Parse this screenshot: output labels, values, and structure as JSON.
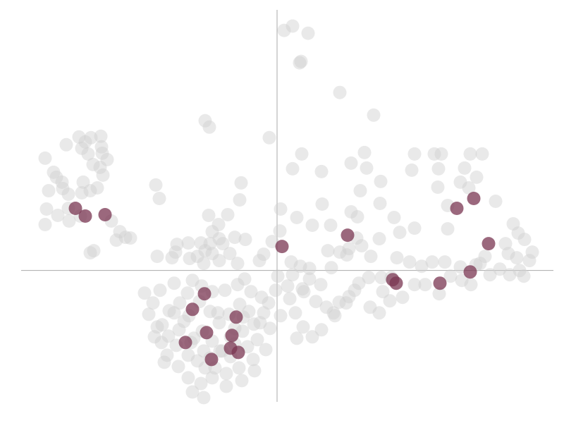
{
  "chart_data": {
    "type": "scatter",
    "title": "",
    "xlabel": "",
    "ylabel": "",
    "xlim": [
      -3.63,
      3.92
    ],
    "ylim": [
      -1.86,
      3.69
    ],
    "axes_through_origin": true,
    "tick_labels": false,
    "grid": false,
    "legend": "none",
    "series": [
      {
        "color": "#cfcfcf",
        "opacity": 0.45,
        "points": [
          [
            0.1,
            3.4
          ],
          [
            0.22,
            3.46
          ],
          [
            0.44,
            3.36
          ],
          [
            0.32,
            2.94
          ],
          [
            0.34,
            2.96
          ],
          [
            0.89,
            2.52
          ],
          [
            1.37,
            2.2
          ],
          [
            -1.02,
            2.12
          ],
          [
            -0.96,
            2.03
          ],
          [
            -0.11,
            1.88
          ],
          [
            0.35,
            1.65
          ],
          [
            0.22,
            1.44
          ],
          [
            0.63,
            1.4
          ],
          [
            1.05,
            1.52
          ],
          [
            1.24,
            1.67
          ],
          [
            1.27,
            1.45
          ],
          [
            1.95,
            1.65
          ],
          [
            1.91,
            1.42
          ],
          [
            2.23,
            1.65
          ],
          [
            2.33,
            1.65
          ],
          [
            2.74,
            1.65
          ],
          [
            2.91,
            1.65
          ],
          [
            2.29,
            1.44
          ],
          [
            2.66,
            1.45
          ],
          [
            2.83,
            1.32
          ],
          [
            2.28,
            1.18
          ],
          [
            2.6,
            1.25
          ],
          [
            2.72,
            1.17
          ],
          [
            2.42,
            0.92
          ],
          [
            3.1,
            0.98
          ],
          [
            1.47,
            1.26
          ],
          [
            1.18,
            1.13
          ],
          [
            0.64,
            0.94
          ],
          [
            0.05,
            0.87
          ],
          [
            0.28,
            0.75
          ],
          [
            0.5,
            0.64
          ],
          [
            0.76,
            0.64
          ],
          [
            1.05,
            0.83
          ],
          [
            1.14,
            0.76
          ],
          [
            1.46,
            0.95
          ],
          [
            1.66,
            0.75
          ],
          [
            1.74,
            0.54
          ],
          [
            1.95,
            0.6
          ],
          [
            2.42,
            0.59
          ],
          [
            3.35,
            0.66
          ],
          [
            3.42,
            0.53
          ],
          [
            3.51,
            0.44
          ],
          [
            3.24,
            0.38
          ],
          [
            -3.29,
            1.59
          ],
          [
            -2.99,
            1.78
          ],
          [
            -2.81,
            1.89
          ],
          [
            -2.72,
            1.82
          ],
          [
            -2.64,
            1.88
          ],
          [
            -2.5,
            1.9
          ],
          [
            -2.77,
            1.73
          ],
          [
            -2.68,
            1.65
          ],
          [
            -2.49,
            1.75
          ],
          [
            -2.48,
            1.66
          ],
          [
            -2.41,
            1.57
          ],
          [
            -2.61,
            1.5
          ],
          [
            -2.51,
            1.46
          ],
          [
            -2.47,
            1.35
          ],
          [
            -3.17,
            1.39
          ],
          [
            -3.13,
            1.32
          ],
          [
            -3.05,
            1.25
          ],
          [
            -3.24,
            1.13
          ],
          [
            -3.04,
            1.16
          ],
          [
            -2.96,
            1.08
          ],
          [
            -2.77,
            1.1
          ],
          [
            -2.65,
            1.13
          ],
          [
            -2.55,
            1.17
          ],
          [
            -2.75,
            1.25
          ],
          [
            -3.27,
            0.87
          ],
          [
            -3.11,
            0.78
          ],
          [
            -2.95,
            0.7
          ],
          [
            -2.79,
            0.77
          ],
          [
            -2.96,
            0.88
          ],
          [
            -2.35,
            0.7
          ],
          [
            -2.23,
            0.55
          ],
          [
            -2.15,
            0.47
          ],
          [
            -2.28,
            0.43
          ],
          [
            -2.08,
            0.46
          ],
          [
            -2.6,
            0.28
          ],
          [
            -2.65,
            0.25
          ],
          [
            -3.29,
            0.65
          ],
          [
            -1.72,
            1.21
          ],
          [
            -1.67,
            1.02
          ],
          [
            -0.51,
            1.24
          ],
          [
            -0.53,
            1.0
          ],
          [
            -0.97,
            0.78
          ],
          [
            -0.83,
            0.65
          ],
          [
            -0.7,
            0.79
          ],
          [
            -0.92,
            0.55
          ],
          [
            -0.82,
            0.45
          ],
          [
            -0.95,
            0.38
          ],
          [
            -0.77,
            0.38
          ],
          [
            -0.6,
            0.47
          ],
          [
            -0.45,
            0.44
          ],
          [
            -1.42,
            0.37
          ],
          [
            -1.26,
            0.39
          ],
          [
            -1.08,
            0.39
          ],
          [
            -1.02,
            0.28
          ],
          [
            -1.44,
            0.26
          ],
          [
            -1.49,
            0.18
          ],
          [
            -1.7,
            0.2
          ],
          [
            -1.24,
            0.17
          ],
          [
            -1.13,
            0.2
          ],
          [
            -1.04,
            0.1
          ],
          [
            -0.92,
            0.24
          ],
          [
            -0.82,
            0.14
          ],
          [
            -0.67,
            0.24
          ],
          [
            -0.56,
            0.1
          ],
          [
            -0.25,
            0.14
          ],
          [
            -0.19,
            0.23
          ],
          [
            -0.07,
            0.41
          ],
          [
            0.04,
            0.56
          ],
          [
            0.2,
            0.12
          ],
          [
            0.33,
            0.06
          ],
          [
            0.46,
            0.03
          ],
          [
            0.72,
            0.28
          ],
          [
            0.77,
            0.04
          ],
          [
            0.89,
            0.26
          ],
          [
            0.99,
            0.22
          ],
          [
            1.02,
            0.31
          ],
          [
            1.13,
            0.46
          ],
          [
            1.2,
            0.35
          ],
          [
            1.33,
            0.2
          ],
          [
            1.45,
            0.45
          ],
          [
            1.62,
            -0.1
          ],
          [
            1.48,
            -0.1
          ],
          [
            1.3,
            -0.1
          ],
          [
            1.16,
            -0.18
          ],
          [
            1.1,
            -0.28
          ],
          [
            1.02,
            -0.37
          ],
          [
            0.88,
            -0.45
          ],
          [
            0.8,
            -0.6
          ],
          [
            0.98,
            -0.46
          ],
          [
            1.5,
            -0.3
          ],
          [
            1.95,
            -0.2
          ],
          [
            2.1,
            -0.2
          ],
          [
            2.3,
            -0.33
          ],
          [
            2.46,
            -0.08
          ],
          [
            2.62,
            -0.14
          ],
          [
            2.75,
            -0.2
          ],
          [
            2.88,
            0.1
          ],
          [
            3.02,
            -0.06
          ],
          [
            3.16,
            0.02
          ],
          [
            3.3,
            -0.06
          ],
          [
            3.44,
            0.0
          ],
          [
            3.5,
            -0.08
          ],
          [
            3.58,
            0.14
          ],
          [
            3.62,
            0.26
          ],
          [
            3.4,
            0.18
          ],
          [
            3.28,
            0.24
          ],
          [
            2.95,
            0.2
          ],
          [
            2.82,
            0.08
          ],
          [
            2.6,
            0.05
          ],
          [
            2.38,
            0.12
          ],
          [
            2.2,
            0.12
          ],
          [
            2.05,
            0.06
          ],
          [
            1.88,
            0.12
          ],
          [
            1.7,
            0.18
          ],
          [
            1.78,
            -0.38
          ],
          [
            1.6,
            -0.43
          ],
          [
            1.45,
            -0.6
          ],
          [
            1.32,
            -0.52
          ],
          [
            0.26,
            -0.6
          ],
          [
            0.37,
            -0.8
          ],
          [
            0.5,
            -0.94
          ],
          [
            0.63,
            -0.84
          ],
          [
            0.82,
            -0.64
          ],
          [
            -0.12,
            -0.46
          ],
          [
            -0.19,
            -0.6
          ],
          [
            -0.33,
            -0.76
          ],
          [
            -0.49,
            -0.86
          ],
          [
            -0.6,
            -1.04
          ],
          [
            -0.81,
            -1.14
          ],
          [
            -0.95,
            -1.24
          ],
          [
            -1.13,
            -1.28
          ],
          [
            -1.26,
            -1.2
          ],
          [
            -1.43,
            -1.06
          ],
          [
            -1.54,
            -0.93
          ],
          [
            -1.63,
            -0.77
          ],
          [
            -1.53,
            -0.57
          ],
          [
            -1.38,
            -0.46
          ],
          [
            -1.27,
            -0.32
          ],
          [
            -1.07,
            -0.22
          ],
          [
            -0.92,
            -0.3
          ],
          [
            -0.74,
            -0.28
          ],
          [
            -0.56,
            -0.2
          ],
          [
            -0.46,
            -0.12
          ],
          [
            -0.37,
            -0.3
          ],
          [
            -0.53,
            -0.48
          ],
          [
            -0.68,
            -0.62
          ],
          [
            -0.82,
            -0.74
          ],
          [
            -0.95,
            -0.58
          ],
          [
            -1.1,
            -0.44
          ],
          [
            -1.25,
            -0.64
          ],
          [
            -1.39,
            -0.84
          ],
          [
            -1.22,
            -1.02
          ],
          [
            -1.06,
            -0.86
          ],
          [
            -0.92,
            -1.0
          ],
          [
            -0.78,
            -1.14
          ],
          [
            -0.66,
            -0.94
          ],
          [
            -0.48,
            -0.66
          ],
          [
            -0.28,
            -0.98
          ],
          [
            -0.16,
            -1.12
          ],
          [
            -0.34,
            -1.26
          ],
          [
            -0.54,
            -1.38
          ],
          [
            -0.72,
            -1.46
          ],
          [
            -0.92,
            -1.52
          ],
          [
            -1.08,
            -1.6
          ],
          [
            -1.26,
            -1.52
          ],
          [
            -1.4,
            -1.36
          ],
          [
            -1.56,
            -1.2
          ],
          [
            -1.64,
            -1.02
          ],
          [
            -1.7,
            -0.8
          ],
          [
            -1.82,
            -0.62
          ],
          [
            -1.76,
            -0.46
          ],
          [
            -1.88,
            -0.32
          ],
          [
            -1.66,
            -0.28
          ],
          [
            -1.46,
            -0.18
          ],
          [
            -1.2,
            -0.14
          ],
          [
            -0.84,
            -0.6
          ],
          [
            -0.1,
            -0.82
          ],
          [
            0.05,
            -0.64
          ],
          [
            0.18,
            -0.4
          ],
          [
            -0.02,
            -0.28
          ],
          [
            0.15,
            -0.22
          ],
          [
            0.38,
            -0.3
          ],
          [
            0.55,
            -0.44
          ],
          [
            0.7,
            -0.52
          ],
          [
            -0.42,
            -1.08
          ],
          [
            -0.66,
            -1.22
          ],
          [
            -1.02,
            -1.38
          ],
          [
            -1.18,
            -0.96
          ],
          [
            -1.32,
            -0.72
          ],
          [
            -1.46,
            -0.6
          ],
          [
            -0.24,
            -0.74
          ],
          [
            -0.88,
            -1.38
          ],
          [
            -1.04,
            -1.14
          ],
          [
            -0.6,
            -0.82
          ],
          [
            -0.4,
            -0.58
          ],
          [
            -0.22,
            -0.38
          ],
          [
            0.01,
            -0.08
          ],
          [
            0.22,
            -0.06
          ],
          [
            0.46,
            -0.12
          ],
          [
            0.62,
            -0.2
          ],
          [
            0.28,
            -0.96
          ],
          [
            0.36,
            -0.26
          ],
          [
            -1.74,
            -0.94
          ],
          [
            -1.6,
            -1.3
          ],
          [
            -1.2,
            -1.72
          ],
          [
            -1.04,
            -1.8
          ],
          [
            -0.72,
            -1.64
          ],
          [
            -0.5,
            -1.56
          ],
          [
            -0.32,
            -1.42
          ]
        ]
      },
      {
        "color": "#7a3552",
        "opacity": 0.75,
        "points": [
          [
            -2.86,
            0.88
          ],
          [
            -2.72,
            0.77
          ],
          [
            -2.44,
            0.79
          ],
          [
            0.07,
            0.34
          ],
          [
            1.0,
            0.5
          ],
          [
            2.55,
            0.88
          ],
          [
            2.79,
            1.02
          ],
          [
            3.0,
            0.38
          ],
          [
            2.74,
            -0.02
          ],
          [
            2.31,
            -0.18
          ],
          [
            1.64,
            -0.13
          ],
          [
            1.69,
            -0.18
          ],
          [
            -1.03,
            -0.33
          ],
          [
            -1.2,
            -0.55
          ],
          [
            -0.58,
            -0.66
          ],
          [
            -1.0,
            -0.88
          ],
          [
            -0.64,
            -0.92
          ],
          [
            -1.3,
            -1.02
          ],
          [
            -0.66,
            -1.1
          ],
          [
            -0.55,
            -1.16
          ],
          [
            -0.93,
            -1.26
          ]
        ]
      }
    ]
  }
}
